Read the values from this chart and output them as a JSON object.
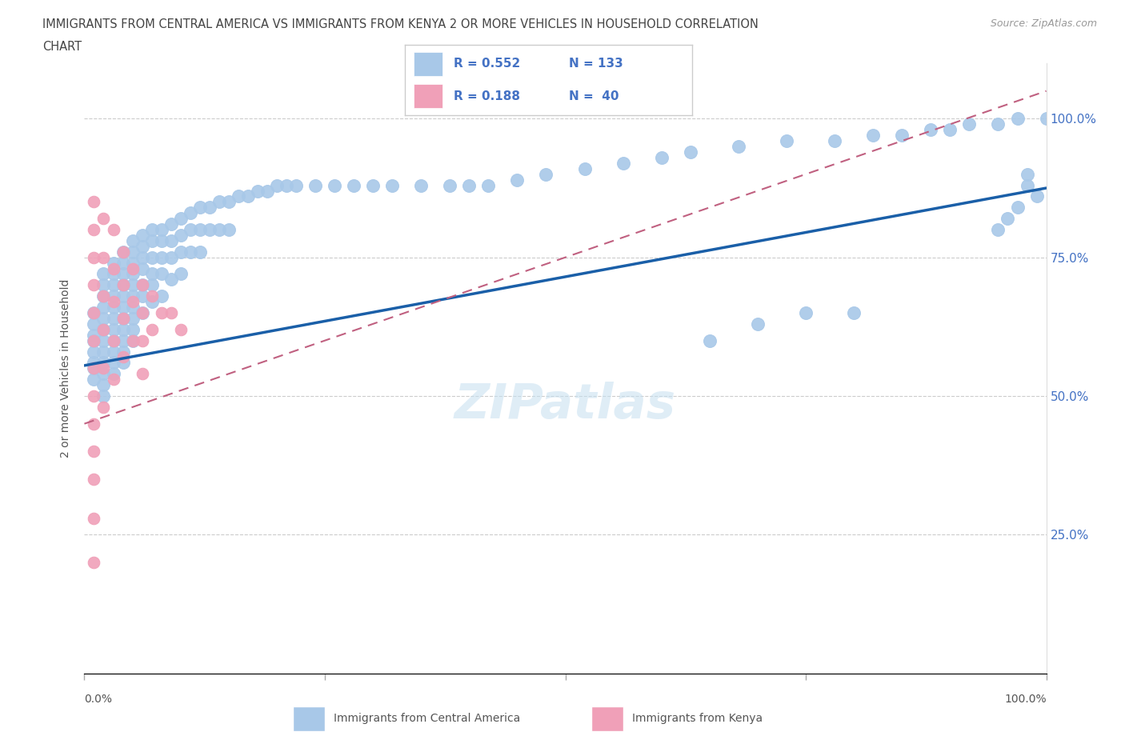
{
  "title_line1": "IMMIGRANTS FROM CENTRAL AMERICA VS IMMIGRANTS FROM KENYA 2 OR MORE VEHICLES IN HOUSEHOLD CORRELATION",
  "title_line2": "CHART",
  "source": "Source: ZipAtlas.com",
  "ylabel": "2 or more Vehicles in Household",
  "legend_label1": "Immigrants from Central America",
  "legend_label2": "Immigrants from Kenya",
  "legend_R1": "R = 0.552",
  "legend_N1": "N = 133",
  "legend_R2": "R = 0.188",
  "legend_N2": "N =  40",
  "color_blue": "#a8c8e8",
  "color_blue_line": "#1a5fa8",
  "color_pink": "#f0a0b8",
  "color_pink_line": "#c06080",
  "watermark": "ZIPatlas",
  "blue_x": [
    0.01,
    0.01,
    0.01,
    0.01,
    0.01,
    0.01,
    0.01,
    0.01,
    0.02,
    0.02,
    0.02,
    0.02,
    0.02,
    0.02,
    0.02,
    0.02,
    0.02,
    0.02,
    0.02,
    0.02,
    0.03,
    0.03,
    0.03,
    0.03,
    0.03,
    0.03,
    0.03,
    0.03,
    0.03,
    0.03,
    0.03,
    0.04,
    0.04,
    0.04,
    0.04,
    0.04,
    0.04,
    0.04,
    0.04,
    0.04,
    0.04,
    0.04,
    0.05,
    0.05,
    0.05,
    0.05,
    0.05,
    0.05,
    0.05,
    0.05,
    0.05,
    0.05,
    0.06,
    0.06,
    0.06,
    0.06,
    0.06,
    0.06,
    0.06,
    0.07,
    0.07,
    0.07,
    0.07,
    0.07,
    0.07,
    0.08,
    0.08,
    0.08,
    0.08,
    0.08,
    0.09,
    0.09,
    0.09,
    0.09,
    0.1,
    0.1,
    0.1,
    0.1,
    0.11,
    0.11,
    0.11,
    0.12,
    0.12,
    0.12,
    0.13,
    0.13,
    0.14,
    0.14,
    0.15,
    0.15,
    0.16,
    0.17,
    0.18,
    0.19,
    0.2,
    0.21,
    0.22,
    0.24,
    0.26,
    0.28,
    0.3,
    0.32,
    0.35,
    0.38,
    0.4,
    0.42,
    0.45,
    0.48,
    0.52,
    0.56,
    0.6,
    0.63,
    0.65,
    0.68,
    0.7,
    0.73,
    0.75,
    0.78,
    0.8,
    0.82,
    0.85,
    0.88,
    0.9,
    0.92,
    0.95,
    0.97,
    0.98,
    1.0,
    0.98,
    0.99,
    0.97,
    0.96,
    0.95
  ],
  "blue_y": [
    0.65,
    0.63,
    0.61,
    0.6,
    0.58,
    0.56,
    0.55,
    0.53,
    0.72,
    0.7,
    0.68,
    0.66,
    0.64,
    0.62,
    0.6,
    0.58,
    0.56,
    0.54,
    0.52,
    0.5,
    0.74,
    0.72,
    0.7,
    0.68,
    0.66,
    0.64,
    0.62,
    0.6,
    0.58,
    0.56,
    0.54,
    0.76,
    0.74,
    0.72,
    0.7,
    0.68,
    0.66,
    0.64,
    0.62,
    0.6,
    0.58,
    0.56,
    0.78,
    0.76,
    0.74,
    0.72,
    0.7,
    0.68,
    0.66,
    0.64,
    0.62,
    0.6,
    0.79,
    0.77,
    0.75,
    0.73,
    0.7,
    0.68,
    0.65,
    0.8,
    0.78,
    0.75,
    0.72,
    0.7,
    0.67,
    0.8,
    0.78,
    0.75,
    0.72,
    0.68,
    0.81,
    0.78,
    0.75,
    0.71,
    0.82,
    0.79,
    0.76,
    0.72,
    0.83,
    0.8,
    0.76,
    0.84,
    0.8,
    0.76,
    0.84,
    0.8,
    0.85,
    0.8,
    0.85,
    0.8,
    0.86,
    0.86,
    0.87,
    0.87,
    0.88,
    0.88,
    0.88,
    0.88,
    0.88,
    0.88,
    0.88,
    0.88,
    0.88,
    0.88,
    0.88,
    0.88,
    0.89,
    0.9,
    0.91,
    0.92,
    0.93,
    0.94,
    0.6,
    0.95,
    0.63,
    0.96,
    0.65,
    0.96,
    0.65,
    0.97,
    0.97,
    0.98,
    0.98,
    0.99,
    0.99,
    1.0,
    0.9,
    1.0,
    0.88,
    0.86,
    0.84,
    0.82,
    0.8
  ],
  "pink_x": [
    0.01,
    0.01,
    0.01,
    0.01,
    0.01,
    0.01,
    0.01,
    0.01,
    0.01,
    0.01,
    0.01,
    0.01,
    0.01,
    0.02,
    0.02,
    0.02,
    0.02,
    0.02,
    0.02,
    0.03,
    0.03,
    0.03,
    0.03,
    0.03,
    0.04,
    0.04,
    0.04,
    0.04,
    0.05,
    0.05,
    0.05,
    0.06,
    0.06,
    0.06,
    0.06,
    0.07,
    0.07,
    0.08,
    0.09,
    0.1
  ],
  "pink_y": [
    0.85,
    0.8,
    0.75,
    0.7,
    0.65,
    0.6,
    0.55,
    0.5,
    0.45,
    0.4,
    0.35,
    0.28,
    0.2,
    0.82,
    0.75,
    0.68,
    0.62,
    0.55,
    0.48,
    0.8,
    0.73,
    0.67,
    0.6,
    0.53,
    0.76,
    0.7,
    0.64,
    0.57,
    0.73,
    0.67,
    0.6,
    0.7,
    0.65,
    0.6,
    0.54,
    0.68,
    0.62,
    0.65,
    0.65,
    0.62
  ],
  "blue_line_x0": 0.0,
  "blue_line_y0": 0.555,
  "blue_line_x1": 1.0,
  "blue_line_y1": 0.875,
  "pink_line_x0": 0.0,
  "pink_line_y0": 0.45,
  "pink_line_x1": 1.0,
  "pink_line_y1": 1.05,
  "xmin": 0.0,
  "xmax": 1.0,
  "ymin": 0.0,
  "ymax": 1.1
}
